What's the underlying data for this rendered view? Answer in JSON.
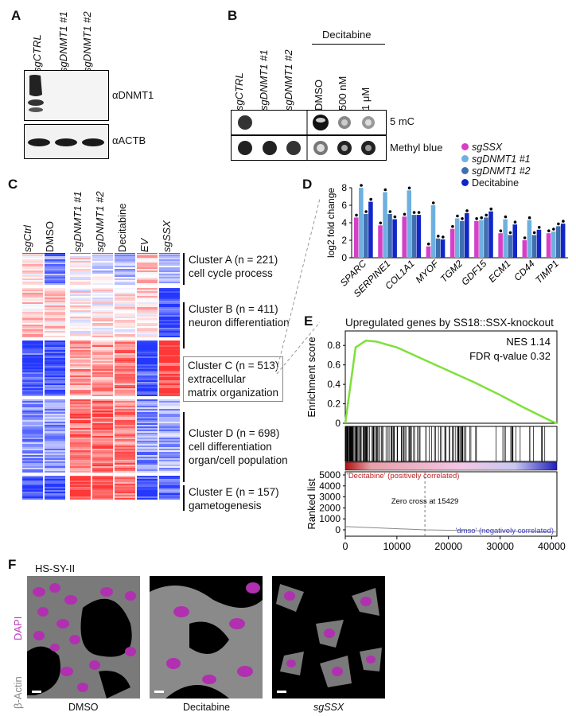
{
  "panel_labels": {
    "a": "A",
    "b": "B",
    "c": "C",
    "d": "D",
    "e": "E",
    "f": "F"
  },
  "panelA": {
    "lanes": [
      "sgCTRL",
      "sgDNMT1 #1",
      "sgDNMT1 #2"
    ],
    "blot1": "αDNMT1",
    "blot2": "αACTB"
  },
  "panelB": {
    "lanes_left": [
      "sgCTRL",
      "sgDNMT1 #1",
      "sgDNMT1 #2"
    ],
    "treatment": "Decitabine",
    "lanes_right": [
      "DMSO",
      "500 nM",
      "1 μM"
    ],
    "row1": "5 mC",
    "row2": "Methyl blue"
  },
  "panelC": {
    "columns": [
      "sgCtrl",
      "DMSO",
      "sgDNMT1 #1",
      "sgDNMT1 #2",
      "Decitabine",
      "EV",
      "sgSSX"
    ],
    "clusters": [
      {
        "line1": "Cluster A (n = 221)",
        "line2": "cell cycle process",
        "line3": ""
      },
      {
        "line1": "Cluster B (n = 411)",
        "line2": "neuron differentiation",
        "line3": ""
      },
      {
        "line1": "Cluster C (n = 513)",
        "line2": "extracellular",
        "line3": "matrix organization"
      },
      {
        "line1": "Cluster D (n = 698)",
        "line2": "cell differentiation",
        "line3": "organ/cell population"
      },
      {
        "line1": "Cluster E (n = 157)",
        "line2": "gametogenesis",
        "line3": ""
      }
    ]
  },
  "colors": {
    "sgSSX": "#d63fc8",
    "sgDNMT1_1": "#6fb0e0",
    "sgDNMT1_2": "#3f6fb0",
    "Decitabine": "#1226c8",
    "green": "#7ee03a"
  },
  "chart_data": [
    {
      "type": "bar",
      "ylabel": "log2 fold change",
      "ylim": [
        0,
        8
      ],
      "yticks": [
        "0",
        "2",
        "4",
        "6",
        "8"
      ],
      "categories": [
        "SPARC",
        "SERPINE1",
        "COL1A1",
        "MYOF",
        "TGM2",
        "GDF15",
        "ECM1",
        "CD44",
        "TIMP1"
      ],
      "series": [
        {
          "name": "sgSSX",
          "values": [
            4.6,
            3.7,
            4.7,
            1.3,
            3.3,
            4.2,
            2.8,
            2.0,
            2.8
          ]
        },
        {
          "name": "sgDNMT1 #1",
          "values": [
            8.0,
            7.5,
            7.7,
            6.0,
            4.5,
            4.3,
            4.4,
            4.3,
            3.0
          ]
        },
        {
          "name": "sgDNMT1 #2",
          "values": [
            5.0,
            5.0,
            4.9,
            2.2,
            4.2,
            4.6,
            2.6,
            2.6,
            3.6
          ]
        },
        {
          "name": "Decitabine",
          "values": [
            6.4,
            4.4,
            4.9,
            2.1,
            5.1,
            5.3,
            3.8,
            3.2,
            3.9
          ]
        }
      ]
    },
    {
      "type": "line",
      "title": "Upregulated genes by SS18::SSX-knockout",
      "ylabel": "Enrichment score",
      "ylim": [
        0,
        0.9
      ],
      "yticks": [
        "0.8",
        "0.6",
        "0.4",
        "0.2",
        "0"
      ],
      "x": [
        0,
        2000,
        4000,
        6000,
        10000,
        15000,
        20000,
        25000,
        30000,
        35000,
        40000,
        41000
      ],
      "y": [
        0.0,
        0.78,
        0.85,
        0.84,
        0.78,
        0.66,
        0.54,
        0.42,
        0.29,
        0.15,
        0.02,
        0.0
      ],
      "nes": "NES 1.14",
      "fdr": "FDR q-value 0.32",
      "ranked_ylabel": "Ranked list",
      "ranked_yticks": [
        "5000",
        "4000",
        "3000",
        "2000",
        "1000",
        "0"
      ],
      "xticks": [
        "0",
        "10000",
        "20000",
        "30000",
        "40000"
      ],
      "pos_label": "'Decitabine' (positively correlated)",
      "neg_label": "'dmso' (negatively correlated)",
      "zero_cross": "Zero cross at 15429"
    }
  ],
  "panelF": {
    "cell_line": "HS-SY-II",
    "stain1": "DAPI",
    "stain2": "β-Actin",
    "captions": [
      "DMSO",
      "Decitabine",
      "sgSSX"
    ]
  }
}
